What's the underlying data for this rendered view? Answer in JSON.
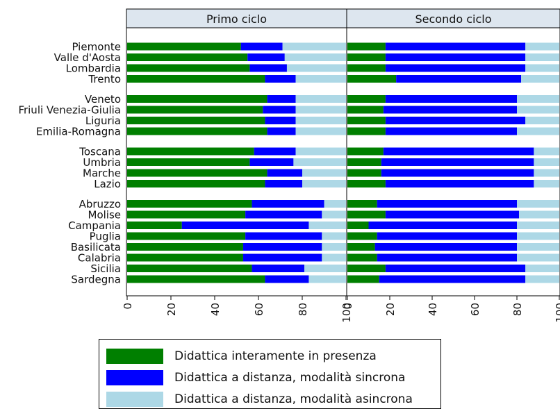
{
  "chart_data": {
    "type": "bar",
    "orientation": "horizontal",
    "stacked": true,
    "panels": [
      {
        "title": "Primo ciclo",
        "series_values": [
          [
            52,
            71,
            100
          ],
          [
            55,
            72,
            100
          ],
          [
            56,
            73,
            100
          ],
          [
            63,
            77,
            100
          ],
          [
            64,
            77,
            100
          ],
          [
            62,
            77,
            100
          ],
          [
            63,
            77,
            100
          ],
          [
            64,
            77,
            100
          ],
          [
            58,
            77,
            100
          ],
          [
            56,
            76,
            100
          ],
          [
            64,
            80,
            100
          ],
          [
            63,
            80,
            100
          ],
          [
            57,
            90,
            100
          ],
          [
            54,
            89,
            100
          ],
          [
            25,
            83,
            100
          ],
          [
            54,
            89,
            100
          ],
          [
            53,
            89,
            100
          ],
          [
            53,
            89,
            100
          ],
          [
            57,
            81,
            100
          ],
          [
            63,
            83,
            100
          ]
        ]
      },
      {
        "title": "Secondo ciclo",
        "series_values": [
          [
            18,
            84,
            100
          ],
          [
            18,
            84,
            100
          ],
          [
            18,
            84,
            100
          ],
          [
            23,
            82,
            100
          ],
          [
            18,
            80,
            100
          ],
          [
            17,
            80,
            100
          ],
          [
            18,
            84,
            100
          ],
          [
            18,
            80,
            100
          ],
          [
            17,
            88,
            100
          ],
          [
            16,
            88,
            100
          ],
          [
            16,
            88,
            100
          ],
          [
            18,
            88,
            100
          ],
          [
            14,
            80,
            100
          ],
          [
            18,
            81,
            100
          ],
          [
            10,
            80,
            100
          ],
          [
            14,
            80,
            100
          ],
          [
            13,
            80,
            100
          ],
          [
            14,
            80,
            100
          ],
          [
            18,
            84,
            100
          ],
          [
            15,
            84,
            100
          ]
        ]
      }
    ],
    "value_encoding": "cumulative",
    "categories": [
      "Piemonte",
      "Valle d'Aosta",
      "Lombardia",
      "Trento",
      "Veneto",
      "Friuli Venezia-Giulia",
      "Liguria",
      "Emilia-Romagna",
      "Toscana",
      "Umbria",
      "Marche",
      "Lazio",
      "Abruzzo",
      "Molise",
      "Campania",
      "Puglia",
      "Basilicata",
      "Calabria",
      "Sicilia",
      "Sardegna"
    ],
    "groups": [
      4,
      4,
      4,
      8
    ],
    "series": [
      {
        "name": "Didattica interamente in presenza",
        "color": "#007f00"
      },
      {
        "name": "Didattica a distanza, modalità sincrona",
        "color": "#0000ff"
      },
      {
        "name": "Didattica a distanza, modalità asincrona",
        "color": "#add8e6"
      }
    ],
    "xticks": [
      "0",
      "20",
      "40",
      "60",
      "80",
      "100"
    ],
    "xlim": [
      0,
      100
    ],
    "grid": false,
    "legend_position": "bottom"
  }
}
